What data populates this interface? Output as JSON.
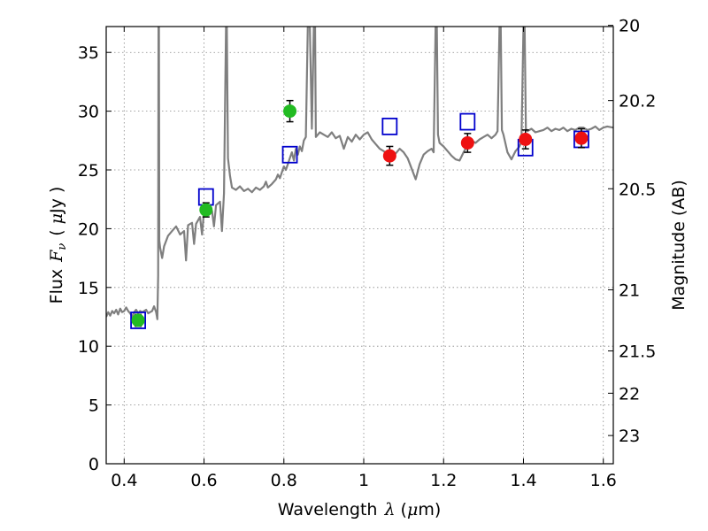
{
  "chart_data": {
    "type": "scatter",
    "xlabel": {
      "text": "Wavelength",
      "symbol": "λ",
      "unit_open": "(",
      "unit_mu": "μ",
      "unit_rest": "m)"
    },
    "ylabel": {
      "text": "Flux",
      "symbol": "F",
      "subscript": "ν",
      "unit_open": "(",
      "unit_mu": "μ",
      "unit_rest": "Jy",
      "unit_close": ")"
    },
    "y2label": "Magnitude (AB)",
    "xlim": [
      0.355,
      1.625
    ],
    "ylim": [
      0,
      37.2
    ],
    "grid": true,
    "x_ticks": [
      0.4,
      0.6,
      0.8,
      1.0,
      1.2,
      1.4,
      1.6
    ],
    "x_tick_labels": [
      "0.4",
      "0.6",
      "0.8",
      "1",
      "1.2",
      "1.4",
      "1.6"
    ],
    "y_ticks": [
      0,
      5,
      10,
      15,
      20,
      25,
      30,
      35
    ],
    "y_tick_labels": [
      "0",
      "5",
      "10",
      "15",
      "20",
      "25",
      "30",
      "35"
    ],
    "y2_ticks": [
      {
        "mag": 20,
        "label": "20"
      },
      {
        "mag": 20.2,
        "label": "20.2"
      },
      {
        "mag": 20.5,
        "label": "20.5"
      },
      {
        "mag": 21,
        "label": "21"
      },
      {
        "mag": 21.5,
        "label": "21.5"
      },
      {
        "mag": 22,
        "label": "22"
      },
      {
        "mag": 23,
        "label": "23"
      }
    ],
    "y2_tick_flux": [
      37.3,
      30.9,
      23.4,
      14.8,
      9.6,
      6.0,
      2.4
    ],
    "series": [
      {
        "name": "model-spectrum",
        "kind": "line",
        "color": "#7f7f7f",
        "points": [
          [
            0.355,
            12.5
          ],
          [
            0.36,
            12.9
          ],
          [
            0.365,
            12.6
          ],
          [
            0.37,
            13.0
          ],
          [
            0.375,
            12.8
          ],
          [
            0.38,
            13.1
          ],
          [
            0.385,
            12.7
          ],
          [
            0.39,
            13.2
          ],
          [
            0.395,
            12.9
          ],
          [
            0.4,
            13.0
          ],
          [
            0.405,
            13.3
          ],
          [
            0.41,
            13.0
          ],
          [
            0.415,
            12.8
          ],
          [
            0.42,
            12.5
          ],
          [
            0.425,
            12.9
          ],
          [
            0.43,
            13.1
          ],
          [
            0.435,
            12.8
          ],
          [
            0.44,
            13.0
          ],
          [
            0.445,
            12.9
          ],
          [
            0.45,
            13.0
          ],
          [
            0.455,
            13.1
          ],
          [
            0.46,
            12.8
          ],
          [
            0.465,
            12.9
          ],
          [
            0.47,
            13.0
          ],
          [
            0.475,
            13.4
          ],
          [
            0.48,
            12.9
          ],
          [
            0.483,
            12.3
          ],
          [
            0.485,
            16.0
          ],
          [
            0.486,
            37.2
          ],
          [
            0.487,
            37.2
          ],
          [
            0.488,
            19.0
          ],
          [
            0.49,
            18.4
          ],
          [
            0.495,
            17.5
          ],
          [
            0.5,
            18.5
          ],
          [
            0.51,
            19.4
          ],
          [
            0.52,
            19.8
          ],
          [
            0.53,
            20.2
          ],
          [
            0.54,
            19.5
          ],
          [
            0.55,
            19.8
          ],
          [
            0.555,
            17.3
          ],
          [
            0.56,
            20.3
          ],
          [
            0.57,
            20.5
          ],
          [
            0.575,
            18.7
          ],
          [
            0.58,
            20.4
          ],
          [
            0.59,
            21.0
          ],
          [
            0.595,
            19.5
          ],
          [
            0.6,
            21.5
          ],
          [
            0.61,
            22.0
          ],
          [
            0.62,
            21.5
          ],
          [
            0.625,
            20.2
          ],
          [
            0.63,
            22.0
          ],
          [
            0.64,
            22.3
          ],
          [
            0.645,
            19.8
          ],
          [
            0.65,
            23.0
          ],
          [
            0.655,
            37.2
          ],
          [
            0.657,
            37.2
          ],
          [
            0.66,
            26.0
          ],
          [
            0.665,
            24.5
          ],
          [
            0.67,
            23.5
          ],
          [
            0.68,
            23.3
          ],
          [
            0.69,
            23.6
          ],
          [
            0.7,
            23.2
          ],
          [
            0.71,
            23.4
          ],
          [
            0.72,
            23.1
          ],
          [
            0.73,
            23.5
          ],
          [
            0.74,
            23.3
          ],
          [
            0.75,
            23.6
          ],
          [
            0.755,
            24.0
          ],
          [
            0.76,
            23.5
          ],
          [
            0.77,
            23.8
          ],
          [
            0.78,
            24.2
          ],
          [
            0.785,
            24.6
          ],
          [
            0.79,
            24.3
          ],
          [
            0.795,
            24.8
          ],
          [
            0.8,
            25.3
          ],
          [
            0.805,
            25.0
          ],
          [
            0.81,
            25.5
          ],
          [
            0.815,
            26.0
          ],
          [
            0.82,
            26.5
          ],
          [
            0.825,
            25.8
          ],
          [
            0.83,
            26.8
          ],
          [
            0.835,
            26.3
          ],
          [
            0.84,
            27.0
          ],
          [
            0.845,
            26.6
          ],
          [
            0.85,
            27.5
          ],
          [
            0.855,
            27.8
          ],
          [
            0.86,
            37.2
          ],
          [
            0.865,
            37.2
          ],
          [
            0.87,
            28.5
          ],
          [
            0.875,
            37.2
          ],
          [
            0.878,
            37.2
          ],
          [
            0.88,
            27.8
          ],
          [
            0.89,
            28.2
          ],
          [
            0.9,
            28.0
          ],
          [
            0.91,
            27.8
          ],
          [
            0.92,
            28.2
          ],
          [
            0.93,
            27.7
          ],
          [
            0.94,
            27.9
          ],
          [
            0.95,
            26.8
          ],
          [
            0.96,
            27.8
          ],
          [
            0.97,
            27.4
          ],
          [
            0.98,
            28.0
          ],
          [
            0.99,
            27.6
          ],
          [
            1.0,
            28.0
          ],
          [
            1.01,
            28.2
          ],
          [
            1.02,
            27.6
          ],
          [
            1.03,
            27.2
          ],
          [
            1.04,
            26.8
          ],
          [
            1.05,
            26.6
          ],
          [
            1.06,
            26.3
          ],
          [
            1.07,
            26.1
          ],
          [
            1.08,
            26.4
          ],
          [
            1.09,
            26.8
          ],
          [
            1.1,
            26.5
          ],
          [
            1.11,
            26.0
          ],
          [
            1.12,
            25.1
          ],
          [
            1.13,
            24.2
          ],
          [
            1.14,
            25.5
          ],
          [
            1.15,
            26.3
          ],
          [
            1.16,
            26.6
          ],
          [
            1.17,
            26.8
          ],
          [
            1.175,
            26.5
          ],
          [
            1.18,
            37.2
          ],
          [
            1.183,
            37.2
          ],
          [
            1.186,
            28.0
          ],
          [
            1.19,
            27.3
          ],
          [
            1.2,
            27.0
          ],
          [
            1.21,
            26.6
          ],
          [
            1.22,
            26.2
          ],
          [
            1.23,
            25.9
          ],
          [
            1.24,
            25.8
          ],
          [
            1.25,
            26.5
          ],
          [
            1.26,
            27.1
          ],
          [
            1.27,
            27.5
          ],
          [
            1.28,
            27.3
          ],
          [
            1.29,
            27.6
          ],
          [
            1.3,
            27.8
          ],
          [
            1.31,
            28.0
          ],
          [
            1.32,
            27.7
          ],
          [
            1.33,
            28.0
          ],
          [
            1.335,
            28.3
          ],
          [
            1.34,
            37.2
          ],
          [
            1.343,
            37.2
          ],
          [
            1.346,
            28.4
          ],
          [
            1.35,
            28.0
          ],
          [
            1.36,
            26.5
          ],
          [
            1.37,
            25.9
          ],
          [
            1.38,
            26.6
          ],
          [
            1.39,
            27.0
          ],
          [
            1.395,
            27.4
          ],
          [
            1.4,
            37.2
          ],
          [
            1.403,
            37.2
          ],
          [
            1.406,
            28.5
          ],
          [
            1.41,
            28.3
          ],
          [
            1.42,
            28.5
          ],
          [
            1.43,
            28.2
          ],
          [
            1.44,
            28.3
          ],
          [
            1.45,
            28.4
          ],
          [
            1.46,
            28.6
          ],
          [
            1.47,
            28.3
          ],
          [
            1.48,
            28.5
          ],
          [
            1.49,
            28.4
          ],
          [
            1.5,
            28.6
          ],
          [
            1.51,
            28.3
          ],
          [
            1.52,
            28.5
          ],
          [
            1.53,
            28.4
          ],
          [
            1.54,
            28.6
          ],
          [
            1.55,
            28.6
          ],
          [
            1.56,
            28.4
          ],
          [
            1.57,
            28.5
          ],
          [
            1.58,
            28.7
          ],
          [
            1.59,
            28.4
          ],
          [
            1.6,
            28.6
          ],
          [
            1.61,
            28.7
          ],
          [
            1.625,
            28.6
          ]
        ]
      },
      {
        "name": "observed-optical",
        "kind": "errorbar-circle",
        "color": "#22bb22",
        "points": [
          {
            "x": 0.435,
            "y": 12.2,
            "err": 0.5
          },
          {
            "x": 0.605,
            "y": 21.6,
            "err": 0.6
          },
          {
            "x": 0.815,
            "y": 30.0,
            "err": 0.9
          }
        ]
      },
      {
        "name": "observed-nir",
        "kind": "errorbar-circle",
        "color": "#ee1111",
        "points": [
          {
            "x": 1.065,
            "y": 26.2,
            "err": 0.8
          },
          {
            "x": 1.26,
            "y": 27.3,
            "err": 0.8
          },
          {
            "x": 1.405,
            "y": 27.6,
            "err": 0.8
          },
          {
            "x": 1.545,
            "y": 27.7,
            "err": 0.8
          }
        ]
      },
      {
        "name": "model-photometry",
        "kind": "open-square",
        "color": "#0000cc",
        "points": [
          {
            "x": 0.435,
            "y": 12.2
          },
          {
            "x": 0.605,
            "y": 22.7
          },
          {
            "x": 0.815,
            "y": 26.3
          },
          {
            "x": 1.065,
            "y": 28.7
          },
          {
            "x": 1.26,
            "y": 29.1
          },
          {
            "x": 1.405,
            "y": 26.9
          },
          {
            "x": 1.545,
            "y": 27.6
          }
        ]
      }
    ]
  }
}
